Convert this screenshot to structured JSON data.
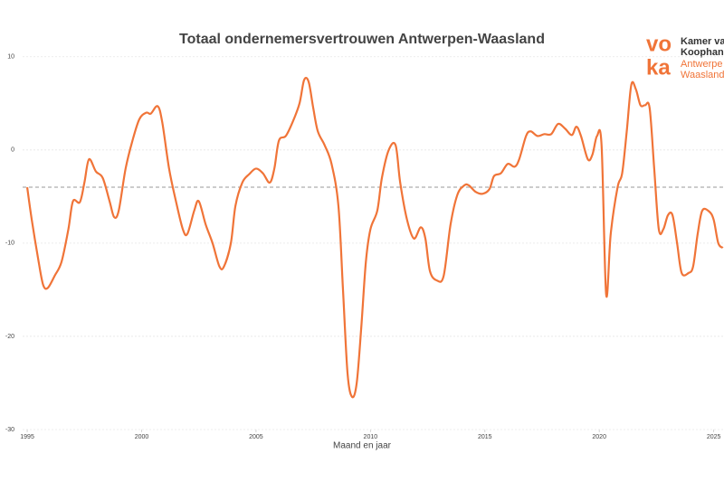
{
  "chart_data": {
    "type": "line",
    "title": "Totaal ondernemersvertrouwen Antwerpen-Waasland",
    "x_label": "Maand en jaar",
    "logo": {
      "mark_top": "vo",
      "mark_bottom": "ka",
      "lines": [
        "Kamer va",
        "Koophan",
        "Antwerpe",
        "Waasland"
      ]
    },
    "xlim": [
      1994.8,
      2025.45
    ],
    "xticks": [
      1995,
      2000,
      2005,
      2010,
      2015,
      2020,
      2025
    ],
    "ylim": [
      -30,
      10.6
    ],
    "yticks": [
      -30,
      -20,
      -10,
      0,
      10
    ],
    "grid": true,
    "reference_line": -4,
    "color": "#f07438",
    "x": [
      1995.0,
      1995.2,
      1995.5,
      1995.7,
      1995.9,
      1996.2,
      1996.5,
      1996.8,
      1997.0,
      1997.3,
      1997.5,
      1997.7,
      1998.0,
      1998.3,
      1998.6,
      1998.8,
      1999.0,
      1999.3,
      1999.6,
      1999.9,
      2000.2,
      2000.4,
      2000.7,
      2000.9,
      2001.2,
      2001.5,
      2001.8,
      2002.0,
      2002.3,
      2002.5,
      2002.8,
      2003.1,
      2003.4,
      2003.6,
      2003.9,
      2004.1,
      2004.4,
      2004.7,
      2005.0,
      2005.3,
      2005.6,
      2005.8,
      2006.0,
      2006.3,
      2006.6,
      2006.9,
      2007.1,
      2007.3,
      2007.5,
      2007.7,
      2008.0,
      2008.3,
      2008.6,
      2008.8,
      2009.0,
      2009.2,
      2009.4,
      2009.6,
      2009.8,
      2010.0,
      2010.3,
      2010.5,
      2010.8,
      2011.1,
      2011.3,
      2011.6,
      2011.9,
      2012.2,
      2012.4,
      2012.6,
      2012.9,
      2013.2,
      2013.5,
      2013.8,
      2014.1,
      2014.3,
      2014.6,
      2014.9,
      2015.2,
      2015.4,
      2015.7,
      2016.0,
      2016.3,
      2016.5,
      2016.8,
      2017.0,
      2017.3,
      2017.6,
      2017.9,
      2018.2,
      2018.5,
      2018.8,
      2019.0,
      2019.2,
      2019.5,
      2019.7,
      2019.9,
      2020.1,
      2020.3,
      2020.5,
      2020.8,
      2021.0,
      2021.2,
      2021.4,
      2021.6,
      2021.8,
      2022.0,
      2022.2,
      2022.4,
      2022.6,
      2022.8,
      2023.0,
      2023.2,
      2023.4,
      2023.6,
      2023.9,
      2024.1,
      2024.3,
      2024.5,
      2024.8,
      2025.0,
      2025.2,
      2025.4
    ],
    "values": [
      -4,
      -7.5,
      -12,
      -14.5,
      -14.8,
      -13.5,
      -12,
      -8.5,
      -5.5,
      -5.6,
      -3.5,
      -1,
      -2.3,
      -3,
      -5.5,
      -7.2,
      -6.5,
      -2,
      1,
      3.3,
      4,
      3.9,
      4.7,
      3,
      -2,
      -5.5,
      -8.5,
      -9,
      -6.5,
      -5.5,
      -8,
      -10,
      -12.5,
      -12.5,
      -10,
      -6,
      -3.5,
      -2.6,
      -2,
      -2.5,
      -3.5,
      -2,
      1,
      1.5,
      3,
      5,
      7.5,
      7.3,
      4.5,
      2,
      0.5,
      -1.5,
      -6,
      -15,
      -24,
      -26.5,
      -25,
      -19,
      -12,
      -8.5,
      -6.5,
      -3,
      0,
      0.5,
      -3.5,
      -7.5,
      -9.5,
      -8.3,
      -9.5,
      -13,
      -14,
      -13.5,
      -8,
      -4.8,
      -3.8,
      -3.8,
      -4.5,
      -4.7,
      -4.2,
      -2.8,
      -2.5,
      -1.5,
      -1.8,
      -1,
      1.5,
      2,
      1.5,
      1.7,
      1.7,
      2.8,
      2.3,
      1.6,
      2.5,
      1.5,
      -1,
      -0.5,
      1.5,
      0.5,
      -15.5,
      -9,
      -4,
      -2.5,
      2,
      7,
      6.5,
      4.8,
      4.8,
      4.5,
      -2,
      -8.5,
      -8.5,
      -7,
      -7,
      -10,
      -13.2,
      -13.2,
      -12.5,
      -9,
      -6.5,
      -6.6,
      -7.5,
      -10,
      -10.5
    ]
  }
}
